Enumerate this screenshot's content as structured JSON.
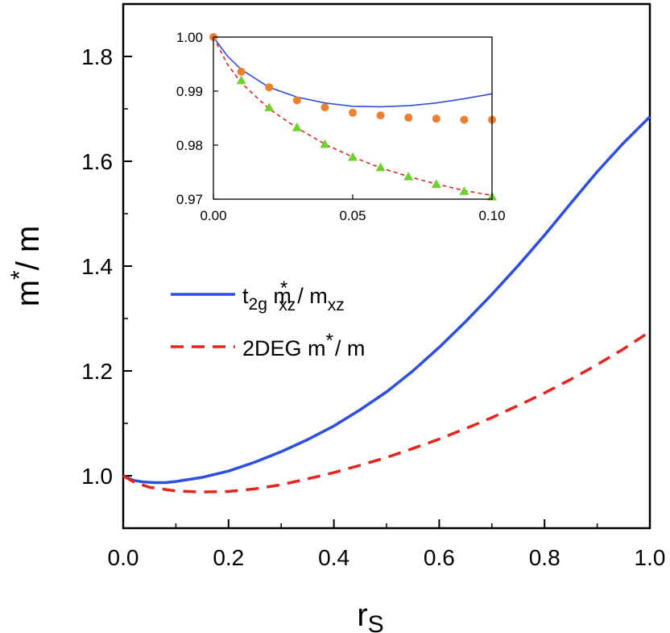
{
  "chart_data": {
    "type": "line",
    "main": {
      "xlabel": "r",
      "xlabel_sub": "S",
      "ylabel_base": "m",
      "ylabel_sup": "*",
      "ylabel_tail": "/ m",
      "xlim": [
        0.0,
        1.0
      ],
      "ylim": [
        0.9,
        1.9
      ],
      "xticks": [
        "0.0",
        "0.2",
        "0.4",
        "0.6",
        "0.8",
        "1.0"
      ],
      "yticks": [
        "1.0",
        "1.2",
        "1.4",
        "1.6",
        "1.8"
      ],
      "series": [
        {
          "name": "t2g m*xz/mxz",
          "color": "#2b4fe0",
          "style": "solid",
          "x": [
            0.0,
            0.02,
            0.04,
            0.06,
            0.08,
            0.1,
            0.15,
            0.2,
            0.25,
            0.3,
            0.35,
            0.4,
            0.45,
            0.5,
            0.55,
            0.6,
            0.65,
            0.7,
            0.75,
            0.8,
            0.85,
            0.9,
            0.95,
            1.0
          ],
          "y": [
            1.0,
            0.991,
            0.988,
            0.987,
            0.987,
            0.989,
            0.997,
            1.009,
            1.026,
            1.046,
            1.069,
            1.095,
            1.126,
            1.16,
            1.2,
            1.245,
            1.294,
            1.346,
            1.401,
            1.459,
            1.52,
            1.58,
            1.635,
            1.685
          ]
        },
        {
          "name": "2DEG m*/m",
          "color": "#e8221c",
          "style": "dashed",
          "x": [
            0.0,
            0.02,
            0.05,
            0.1,
            0.15,
            0.2,
            0.25,
            0.3,
            0.35,
            0.4,
            0.45,
            0.5,
            0.55,
            0.6,
            0.65,
            0.7,
            0.75,
            0.8,
            0.85,
            0.9,
            0.95,
            1.0
          ],
          "y": [
            1.0,
            0.988,
            0.978,
            0.971,
            0.969,
            0.97,
            0.975,
            0.983,
            0.994,
            1.006,
            1.02,
            1.035,
            1.052,
            1.07,
            1.09,
            1.111,
            1.134,
            1.158,
            1.184,
            1.212,
            1.242,
            1.275
          ]
        }
      ],
      "legend": {
        "placement": "center-left",
        "entries": [
          {
            "base": "t",
            "sub1": "2g",
            "mid": " m",
            "sup": "*",
            "sub2": "xz",
            "tail": "/ m",
            "sub3": "xz"
          },
          {
            "text": "2DEG m",
            "sup": "*",
            "tail": "/ m"
          }
        ]
      }
    },
    "inset": {
      "placement": "top-left",
      "xlim": [
        0.0,
        0.1
      ],
      "ylim": [
        0.97,
        1.0
      ],
      "xticks": [
        "0.00",
        "0.05",
        "0.10"
      ],
      "yticks": [
        "0.97",
        "0.98",
        "0.99",
        "1.00"
      ],
      "lines": [
        {
          "color": "#2b4fe0",
          "style": "solid",
          "x": [
            0.0,
            0.005,
            0.01,
            0.02,
            0.03,
            0.04,
            0.05,
            0.06,
            0.07,
            0.08,
            0.09,
            0.1
          ],
          "y": [
            1.0,
            0.9965,
            0.994,
            0.9907,
            0.9889,
            0.9878,
            0.9872,
            0.9871,
            0.9873,
            0.9878,
            0.9886,
            0.9895
          ]
        },
        {
          "color": "#e8221c",
          "style": "dashed",
          "x": [
            0.0,
            0.005,
            0.01,
            0.02,
            0.03,
            0.04,
            0.05,
            0.06,
            0.07,
            0.08,
            0.09,
            0.1
          ],
          "y": [
            1.0,
            0.995,
            0.9915,
            0.9867,
            0.9832,
            0.9802,
            0.9778,
            0.9758,
            0.9742,
            0.9728,
            0.9716,
            0.9707
          ]
        }
      ],
      "markers": [
        {
          "shape": "circle",
          "color": "#f07f2d",
          "x": [
            0.0,
            0.01,
            0.02,
            0.03,
            0.04,
            0.05,
            0.06,
            0.07,
            0.08,
            0.09,
            0.1
          ],
          "y": [
            1.0,
            0.9936,
            0.9907,
            0.9883,
            0.987,
            0.986,
            0.9855,
            0.9851,
            0.9849,
            0.9847,
            0.9847
          ]
        },
        {
          "shape": "triangle",
          "color": "#6fd12f",
          "x": [
            0.01,
            0.02,
            0.03,
            0.04,
            0.05,
            0.06,
            0.07,
            0.08,
            0.09,
            0.1
          ],
          "y": [
            0.992,
            0.987,
            0.9833,
            0.9802,
            0.9778,
            0.9759,
            0.9742,
            0.9728,
            0.9715,
            0.9705
          ]
        }
      ]
    }
  }
}
